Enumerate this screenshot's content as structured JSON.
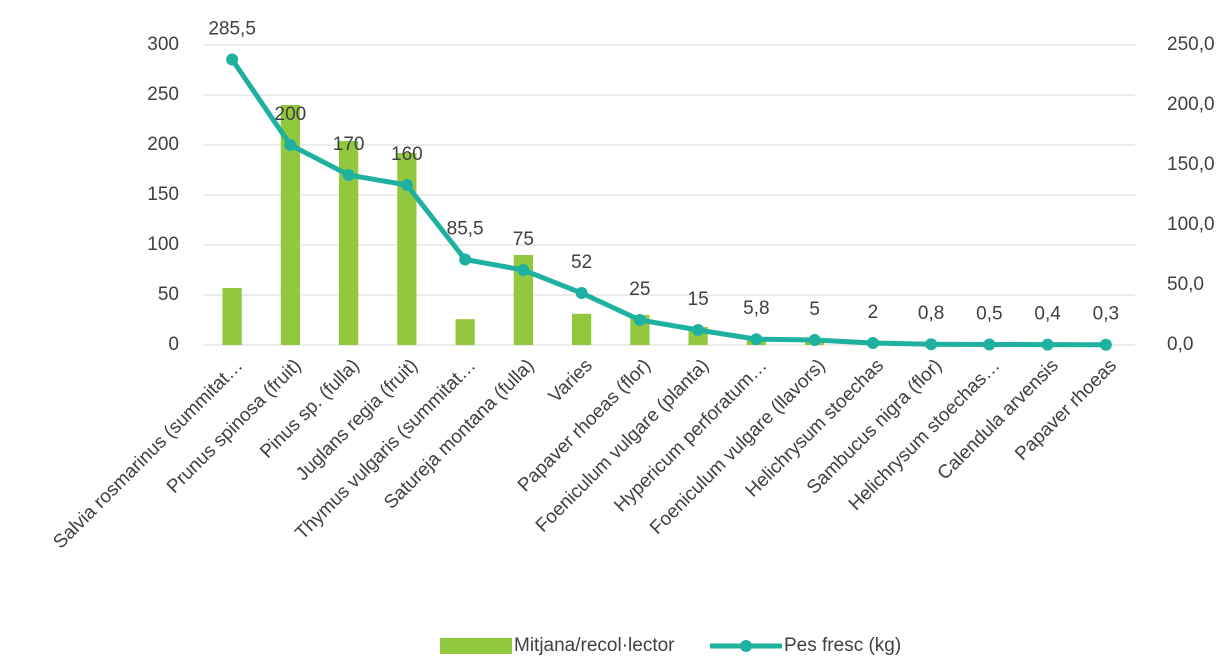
{
  "chart_data": {
    "type": "bar-line",
    "categories": [
      "Salvia rosmarinus (summitat…",
      "Prunus spinosa (fruit)",
      "Pinus sp. (fulla)",
      "Juglans regia (fruit)",
      "Thymus vulgaris (summitat…",
      "Satureja montana (fulla)",
      "Varies",
      "Papaver rhoeas (flor)",
      "Foeniculum vulgare (planta)",
      "Hypericum perforatum…",
      "Foeniculum vulgare (llavors)",
      "Helichrysum stoechas",
      "Sambucus nigra (flor)",
      "Helichrysum stoechas…",
      "Calendula arvensis",
      "Papaver rhoeas"
    ],
    "series": [
      {
        "name": "Mitjana/recol·lector",
        "type": "bar",
        "axis": "y2",
        "color": "#92c83e",
        "values": [
          47.5,
          200,
          170,
          160,
          21.5,
          75,
          26,
          25,
          15,
          6,
          4,
          1.5,
          0.5,
          0.3,
          0.3,
          0.2
        ]
      },
      {
        "name": "Pes fresc (kg)",
        "type": "line",
        "axis": "y",
        "color": "#1fb1a0",
        "values": [
          285.5,
          200,
          170,
          160,
          85.5,
          75,
          52,
          25,
          15,
          5.8,
          5,
          2,
          0.8,
          0.5,
          0.4,
          0.3
        ],
        "value_labels": [
          "285,5",
          "200",
          "170",
          "160",
          "85,5",
          "75",
          "52",
          "25",
          "15",
          "5,8",
          "5",
          "2",
          "0,8",
          "0,5",
          "0,4",
          "0,3"
        ]
      }
    ],
    "ylim": [
      0,
      300
    ],
    "yticks": [
      0,
      50,
      100,
      150,
      200,
      250,
      300
    ],
    "y2lim": [
      0,
      250
    ],
    "y2ticks": [
      {
        "value": 0,
        "label": "0,0"
      },
      {
        "value": 50,
        "label": "50,0"
      },
      {
        "value": 100,
        "label": "100,0"
      },
      {
        "value": 150,
        "label": "150,0"
      },
      {
        "value": 200,
        "label": "200,0"
      },
      {
        "value": 250,
        "label": "250,0"
      }
    ],
    "legend": "bottom"
  }
}
